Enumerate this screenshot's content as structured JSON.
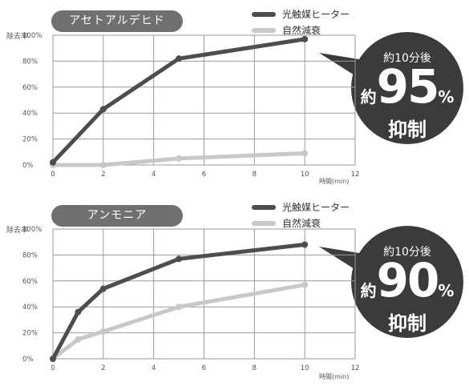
{
  "colors": {
    "heater": "#4d4d4d",
    "natural": "#c8c8c8",
    "badge": "#3b3b3b",
    "pill": "#707070",
    "grid": "#9a9a9a"
  },
  "chart_data": [
    {
      "type": "line",
      "title": "アセトアルデヒド",
      "ylabel": "除去率",
      "xlabel": "時間(min)",
      "x_ticks": [
        "0",
        "2",
        "4",
        "6",
        "8",
        "10",
        "12"
      ],
      "y_ticks": [
        "0%",
        "20%",
        "40%",
        "60%",
        "80%",
        "100%"
      ],
      "xlim": [
        0,
        12
      ],
      "ylim": [
        0,
        100
      ],
      "grid": true,
      "legend": "top-right",
      "series": [
        {
          "name": "光触媒ヒーター",
          "color": "#4d4d4d",
          "x": [
            0,
            2,
            5,
            10
          ],
          "y": [
            2,
            43,
            82,
            97
          ]
        },
        {
          "name": "自然減衰",
          "color": "#c8c8c8",
          "x": [
            0,
            2,
            5,
            10
          ],
          "y": [
            0,
            0,
            5,
            9
          ]
        }
      ],
      "badge": {
        "top": "約10分後",
        "prefix": "約",
        "value": "95",
        "unit": "%",
        "bottom": "抑制"
      }
    },
    {
      "type": "line",
      "title": "アンモニア",
      "ylabel": "除去率",
      "xlabel": "時間(min)",
      "x_ticks": [
        "0",
        "2",
        "4",
        "6",
        "8",
        "10",
        "12"
      ],
      "y_ticks": [
        "0%",
        "20%",
        "40%",
        "60%",
        "80%",
        "100%"
      ],
      "xlim": [
        0,
        12
      ],
      "ylim": [
        0,
        100
      ],
      "grid": true,
      "legend": "top-right",
      "series": [
        {
          "name": "光触媒ヒーター",
          "color": "#4d4d4d",
          "x": [
            0,
            1,
            2,
            5,
            10
          ],
          "y": [
            0,
            36,
            54,
            77,
            88
          ]
        },
        {
          "name": "自然減衰",
          "color": "#c8c8c8",
          "x": [
            0,
            1,
            2,
            5,
            10
          ],
          "y": [
            0,
            15,
            21,
            40,
            57
          ]
        }
      ],
      "badge": {
        "top": "約10分後",
        "prefix": "約",
        "value": "90",
        "unit": "%",
        "bottom": "抑制"
      }
    }
  ]
}
